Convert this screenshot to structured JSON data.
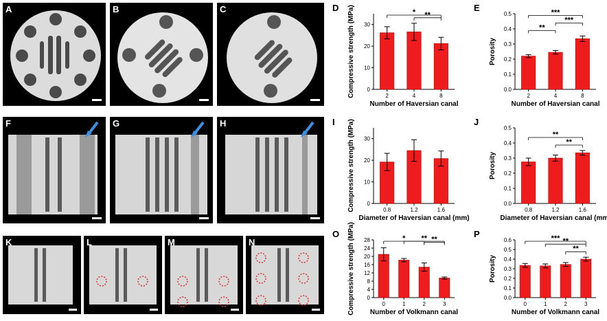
{
  "colors": {
    "bar": "#ee1c1c",
    "bar_stroke": "#b30000",
    "image_bg": "#000000",
    "scale_bar": "#ffffff",
    "arrow": "#3a8fe0",
    "circle_marker": "#e03030"
  },
  "image_panels": [
    {
      "label": "A",
      "kind": "cross-section-round",
      "canals": 8
    },
    {
      "label": "B",
      "kind": "cross-section-round",
      "canals": 4
    },
    {
      "label": "C",
      "kind": "cross-section-round",
      "canals": 2
    },
    {
      "label": "F",
      "kind": "longitudinal",
      "arrow": true
    },
    {
      "label": "G",
      "kind": "longitudinal",
      "arrow": true
    },
    {
      "label": "H",
      "kind": "longitudinal",
      "arrow": true
    },
    {
      "label": "K",
      "kind": "longitudinal-small",
      "circles": 0
    },
    {
      "label": "L",
      "kind": "longitudinal-small",
      "circles": 2
    },
    {
      "label": "M",
      "kind": "longitudinal-small",
      "circles": 4
    },
    {
      "label": "N",
      "kind": "longitudinal-small",
      "circles": 6
    }
  ],
  "chart_data": [
    {
      "label": "D",
      "type": "bar",
      "categories": [
        "2",
        "4",
        "8"
      ],
      "values": [
        26.2,
        26.6,
        21.2
      ],
      "errors": [
        2.8,
        4.0,
        2.9
      ],
      "ylabel": "Compressive strength (MPa)",
      "xlabel": "Number of Haversian canal",
      "ylim": [
        0,
        35
      ],
      "yticks": [
        "0",
        "10",
        "20",
        "30"
      ],
      "significance": [
        {
          "from": 0,
          "to": 2,
          "stars": "*"
        },
        {
          "from": 1,
          "to": 2,
          "stars": "**"
        }
      ]
    },
    {
      "label": "E",
      "type": "bar",
      "categories": [
        "2",
        "4",
        "8"
      ],
      "values": [
        0.22,
        0.245,
        0.335
      ],
      "errors": [
        0.01,
        0.012,
        0.018
      ],
      "ylabel": "Porosity",
      "xlabel": "Number of Haversian canal",
      "ylim": [
        0,
        0.5
      ],
      "yticks": [
        "0.0",
        "0.1",
        "0.2",
        "0.3",
        "0.4",
        "0.5"
      ],
      "significance": [
        {
          "from": 0,
          "to": 1,
          "stars": "**"
        },
        {
          "from": 0,
          "to": 2,
          "stars": "***"
        },
        {
          "from": 1,
          "to": 2,
          "stars": "***"
        }
      ]
    },
    {
      "label": "I",
      "type": "bar",
      "categories": [
        "0.8",
        "1.2",
        "1.6"
      ],
      "values": [
        19.2,
        24.5,
        20.8
      ],
      "errors": [
        4.0,
        5.0,
        3.5
      ],
      "ylabel": "Compressive strength (MPa)",
      "xlabel": "Diameter of Haversian canal (mm)",
      "ylim": [
        0,
        35
      ],
      "yticks": [
        "0",
        "10",
        "20",
        "30"
      ],
      "significance": []
    },
    {
      "label": "J",
      "type": "bar",
      "categories": [
        "0.8",
        "1.2",
        "1.6"
      ],
      "values": [
        0.275,
        0.3,
        0.335
      ],
      "errors": [
        0.025,
        0.02,
        0.015
      ],
      "ylabel": "Porosity",
      "xlabel": "Diameter of Haversian canal (mm)",
      "ylim": [
        0,
        0.5
      ],
      "yticks": [
        "0.0",
        "0.1",
        "0.2",
        "0.3",
        "0.4",
        "0.5"
      ],
      "significance": [
        {
          "from": 0,
          "to": 2,
          "stars": "**"
        },
        {
          "from": 1,
          "to": 2,
          "stars": "**"
        }
      ]
    },
    {
      "label": "O",
      "type": "bar",
      "categories": [
        "0",
        "1",
        "2",
        "3"
      ],
      "values": [
        21.0,
        18.2,
        14.8,
        9.5
      ],
      "errors": [
        3.2,
        0.8,
        2.0,
        0.5
      ],
      "ylabel": "Compressive strength (MPa)",
      "xlabel": "Number of Volkmann canal",
      "ylim": [
        0,
        28
      ],
      "yticks": [
        "0",
        "4",
        "8",
        "12",
        "16",
        "20",
        "24",
        "28"
      ],
      "significance": [
        {
          "from": 0,
          "to": 2,
          "stars": "*"
        },
        {
          "from": 1,
          "to": 3,
          "stars": "**"
        },
        {
          "from": 2,
          "to": 3,
          "stars": "**"
        }
      ]
    },
    {
      "label": "P",
      "type": "bar",
      "categories": [
        "0",
        "1",
        "2",
        "3"
      ],
      "values": [
        0.335,
        0.33,
        0.345,
        0.4
      ],
      "errors": [
        0.02,
        0.02,
        0.02,
        0.02
      ],
      "ylabel": "Porosity",
      "xlabel": "Number of Volkmann canal",
      "ylim": [
        0,
        0.6
      ],
      "yticks": [
        "0.0",
        "0.1",
        "0.2",
        "0.3",
        "0.4",
        "0.5",
        "0.6"
      ],
      "significance": [
        {
          "from": 0,
          "to": 3,
          "stars": "***"
        },
        {
          "from": 1,
          "to": 3,
          "stars": "**"
        },
        {
          "from": 2,
          "to": 3,
          "stars": "**"
        }
      ]
    }
  ]
}
